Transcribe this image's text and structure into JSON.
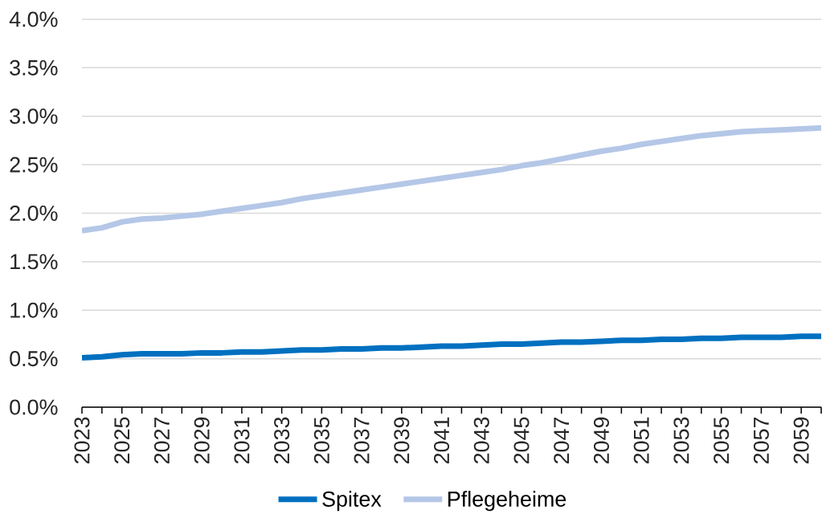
{
  "chart_data": {
    "type": "line",
    "categories": [
      "2023",
      null,
      "2025",
      null,
      "2027",
      null,
      "2029",
      null,
      "2031",
      null,
      "2033",
      null,
      "2035",
      null,
      "2037",
      null,
      "2039",
      null,
      "2041",
      null,
      "2043",
      null,
      "2045",
      null,
      "2047",
      null,
      "2049",
      null,
      "2051",
      null,
      "2053",
      null,
      "2055",
      null,
      "2057",
      null,
      "2059",
      null
    ],
    "series": [
      {
        "name": "Spitex",
        "color": "#0070c0",
        "values": [
          0.51,
          0.52,
          0.54,
          0.55,
          0.55,
          0.55,
          0.56,
          0.56,
          0.57,
          0.57,
          0.58,
          0.59,
          0.59,
          0.6,
          0.6,
          0.61,
          0.61,
          0.62,
          0.63,
          0.63,
          0.64,
          0.65,
          0.65,
          0.66,
          0.67,
          0.67,
          0.68,
          0.69,
          0.69,
          0.7,
          0.7,
          0.71,
          0.71,
          0.72,
          0.72,
          0.72,
          0.73,
          0.73
        ]
      },
      {
        "name": "Pflegeheime",
        "color": "#b4c7e7",
        "values": [
          1.82,
          1.85,
          1.91,
          1.94,
          1.95,
          1.97,
          1.99,
          2.02,
          2.05,
          2.08,
          2.11,
          2.15,
          2.18,
          2.21,
          2.24,
          2.27,
          2.3,
          2.33,
          2.36,
          2.39,
          2.42,
          2.45,
          2.49,
          2.52,
          2.56,
          2.6,
          2.64,
          2.67,
          2.71,
          2.74,
          2.77,
          2.8,
          2.82,
          2.84,
          2.85,
          2.86,
          2.87,
          2.88
        ]
      }
    ],
    "ylim": [
      0,
      4
    ],
    "yticks": [
      {
        "value": 0,
        "label": "0.0%"
      },
      {
        "value": 0.5,
        "label": "0.5%"
      },
      {
        "value": 1,
        "label": "1.0%"
      },
      {
        "value": 1.5,
        "label": "1.5%"
      },
      {
        "value": 2,
        "label": "2.0%"
      },
      {
        "value": 2.5,
        "label": "2.5%"
      },
      {
        "value": 3,
        "label": "3.0%"
      },
      {
        "value": 3.5,
        "label": "3.5%"
      },
      {
        "value": 4,
        "label": "4.0%"
      }
    ],
    "grid": "y",
    "legend": "bottom",
    "marker": "none",
    "line_style": "solid"
  }
}
